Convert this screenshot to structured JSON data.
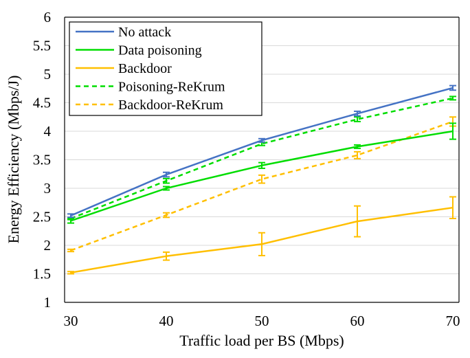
{
  "chart_data": {
    "type": "line",
    "title": "",
    "xlabel": "Traffic load per BS (Mbps)",
    "ylabel": "Energy Efficiency (Mbps/J)",
    "xlim": [
      30,
      70
    ],
    "ylim": [
      1,
      6
    ],
    "x": [
      30,
      40,
      50,
      60,
      70
    ],
    "x_ticks": [
      "30",
      "40",
      "50",
      "60",
      "70"
    ],
    "y_ticks": [
      "1",
      "1.5",
      "2",
      "2.5",
      "3",
      "3.5",
      "4",
      "4.5",
      "5",
      "5.5",
      "6"
    ],
    "grid": "horizontal",
    "legend_position": "top-left",
    "series": [
      {
        "name": "No attack",
        "color": "#4472c4",
        "dash": "solid",
        "values": [
          2.52,
          3.24,
          3.84,
          4.31,
          4.76
        ],
        "errors": [
          0.03,
          0.04,
          0.03,
          0.04,
          0.04
        ]
      },
      {
        "name": "Data poisoning",
        "color": "#00dd00",
        "dash": "solid",
        "values": [
          2.43,
          3.0,
          3.4,
          3.73,
          4.0
        ],
        "errors": [
          0.04,
          0.03,
          0.05,
          0.03,
          0.14
        ]
      },
      {
        "name": "Backdoor",
        "color": "#ffbf00",
        "dash": "solid",
        "values": [
          1.52,
          1.81,
          2.02,
          2.42,
          2.66
        ],
        "errors": [
          0.02,
          0.07,
          0.2,
          0.27,
          0.19
        ]
      },
      {
        "name": "Poisoning-ReKrum",
        "color": "#00dd00",
        "dash": "dashed",
        "values": [
          2.47,
          3.13,
          3.78,
          4.21,
          4.58
        ],
        "errors": [
          0.02,
          0.04,
          0.03,
          0.04,
          0.03
        ]
      },
      {
        "name": "Backdoor-ReKrum",
        "color": "#ffbf00",
        "dash": "dashed",
        "values": [
          1.91,
          2.53,
          3.16,
          3.58,
          4.17
        ],
        "errors": [
          0.02,
          0.04,
          0.07,
          0.06,
          0.08
        ]
      }
    ]
  }
}
